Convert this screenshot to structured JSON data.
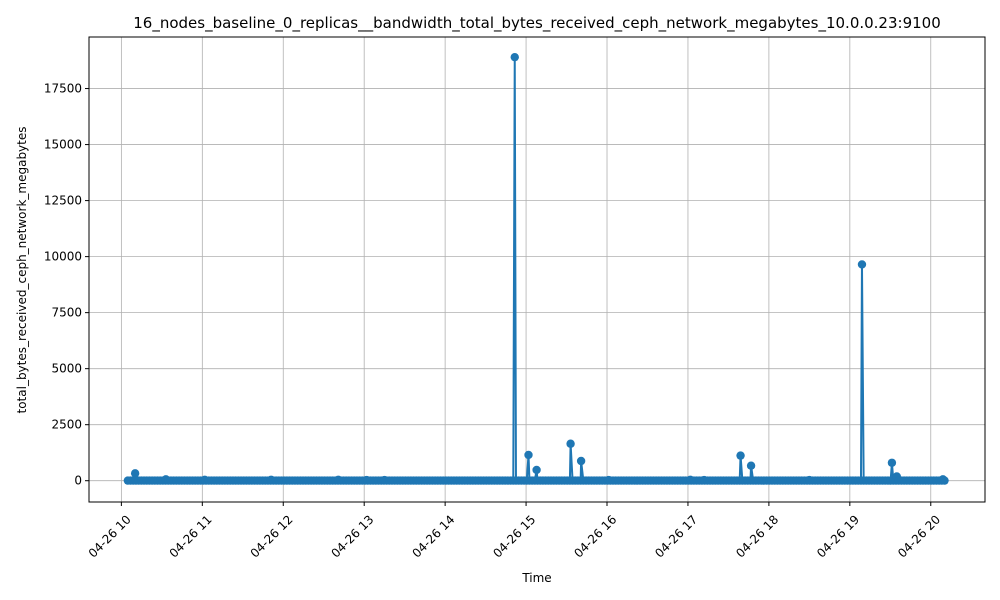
{
  "chart_data": {
    "type": "line",
    "title": "16_nodes_baseline_0_replicas__bandwidth_total_bytes_received_ceph_network_megabytes_10.0.0.23:9100",
    "xlabel": "Time",
    "ylabel": "total_bytes_received_ceph_network_megabytes",
    "x_axis": "time (hours on 04-26)",
    "xlim": [
      9.6,
      20.67
    ],
    "ylim": [
      -950,
      19800
    ],
    "x_ticks": [
      10,
      11,
      12,
      13,
      14,
      15,
      16,
      17,
      18,
      19,
      20
    ],
    "x_tick_labels": [
      "04-26 10",
      "04-26 11",
      "04-26 12",
      "04-26 13",
      "04-26 14",
      "04-26 15",
      "04-26 16",
      "04-26 17",
      "04-26 18",
      "04-26 19",
      "04-26 20"
    ],
    "y_ticks": [
      0,
      2500,
      5000,
      7500,
      10000,
      12500,
      15000,
      17500
    ],
    "y_tick_labels": [
      "0",
      "2500",
      "5000",
      "7500",
      "10000",
      "12500",
      "15000",
      "17500"
    ],
    "grid": true,
    "marker": "circle",
    "color": "#1f77b4",
    "series_range": [
      10.08,
      20.17
    ],
    "series_step": 0.0333,
    "baseline": 5,
    "spikes": [
      {
        "x": 10.17,
        "y": 330
      },
      {
        "x": 10.55,
        "y": 60
      },
      {
        "x": 11.03,
        "y": 40
      },
      {
        "x": 11.85,
        "y": 40
      },
      {
        "x": 12.68,
        "y": 40
      },
      {
        "x": 13.03,
        "y": 30
      },
      {
        "x": 13.25,
        "y": 30
      },
      {
        "x": 14.86,
        "y": 18900
      },
      {
        "x": 15.03,
        "y": 1150
      },
      {
        "x": 15.13,
        "y": 480
      },
      {
        "x": 15.55,
        "y": 1650
      },
      {
        "x": 15.68,
        "y": 880
      },
      {
        "x": 16.02,
        "y": 30
      },
      {
        "x": 17.03,
        "y": 40
      },
      {
        "x": 17.2,
        "y": 30
      },
      {
        "x": 17.65,
        "y": 1120
      },
      {
        "x": 17.78,
        "y": 670
      },
      {
        "x": 18.5,
        "y": 30
      },
      {
        "x": 19.15,
        "y": 9650
      },
      {
        "x": 19.52,
        "y": 800
      },
      {
        "x": 19.58,
        "y": 190
      },
      {
        "x": 20.15,
        "y": 60
      }
    ]
  }
}
